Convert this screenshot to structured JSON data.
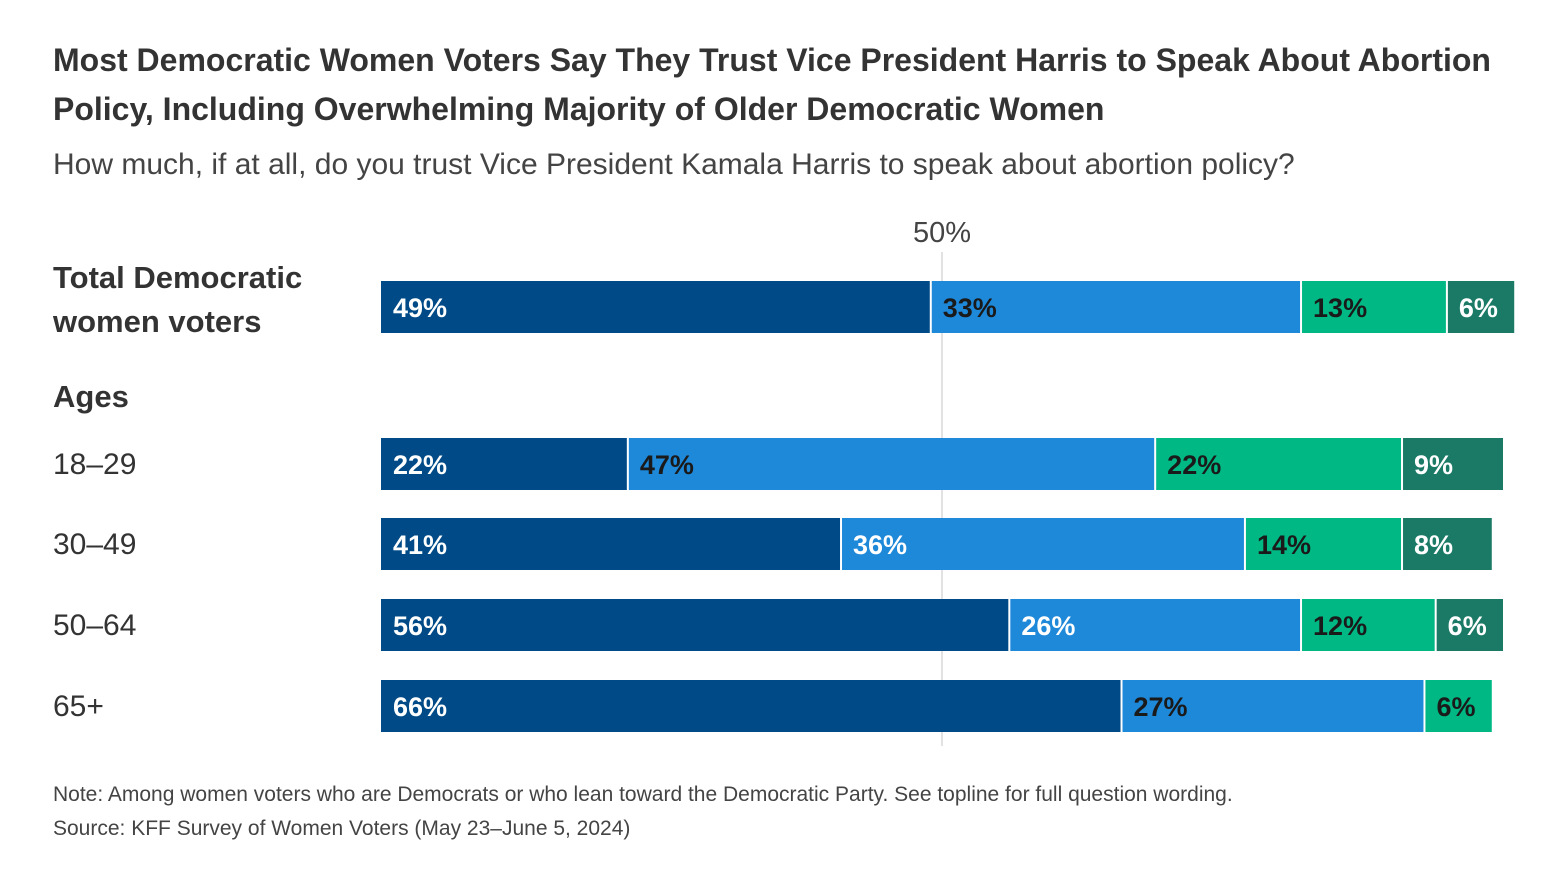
{
  "chart_data": {
    "type": "bar",
    "orientation": "horizontal",
    "stacked": true,
    "title": "Most Democratic Women Voters Say They Trust Vice President Harris to Speak About Abortion Policy, Including Overwhelming Majority of Older Democratic Women",
    "subtitle": "How much, if at all, do you trust Vice President Kamala Harris to speak about abortion policy?",
    "reference_line": {
      "value": 50,
      "label": "50%"
    },
    "section_label": "Ages",
    "categories": [
      "Total Democratic women voters",
      "18–29",
      "30–49",
      "50–64",
      "65+"
    ],
    "colors": [
      "#004B87",
      "#1E88D9",
      "#00B884",
      "#1B7A66"
    ],
    "series": [
      {
        "values": [
          49,
          22,
          41,
          56,
          66
        ],
        "label_color": "#ffffff"
      },
      {
        "values": [
          33,
          47,
          36,
          26,
          27
        ],
        "label_colors": [
          "#1a1a1a",
          "#1a1a1a",
          "#ffffff",
          "#ffffff",
          "#1a1a1a"
        ]
      },
      {
        "values": [
          13,
          22,
          14,
          12,
          6
        ],
        "label_color": "#1a1a1a"
      },
      {
        "values": [
          6,
          9,
          8,
          6,
          0
        ],
        "label_color": "#ffffff"
      }
    ],
    "bar_labels": [
      [
        "49%",
        "33%",
        "13%",
        "6%"
      ],
      [
        "22%",
        "47%",
        "22%",
        "9%"
      ],
      [
        "41%",
        "36%",
        "14%",
        "8%"
      ],
      [
        "56%",
        "26%",
        "12%",
        "6%"
      ],
      [
        "66%",
        "27%",
        "6%",
        ""
      ]
    ],
    "xlim": [
      0,
      100
    ]
  },
  "note": "Note: Among women voters who are Democrats or who lean toward the Democratic Party. See topline for full question wording.",
  "source": "Source: KFF Survey of Women Voters (May 23–June 5, 2024)"
}
